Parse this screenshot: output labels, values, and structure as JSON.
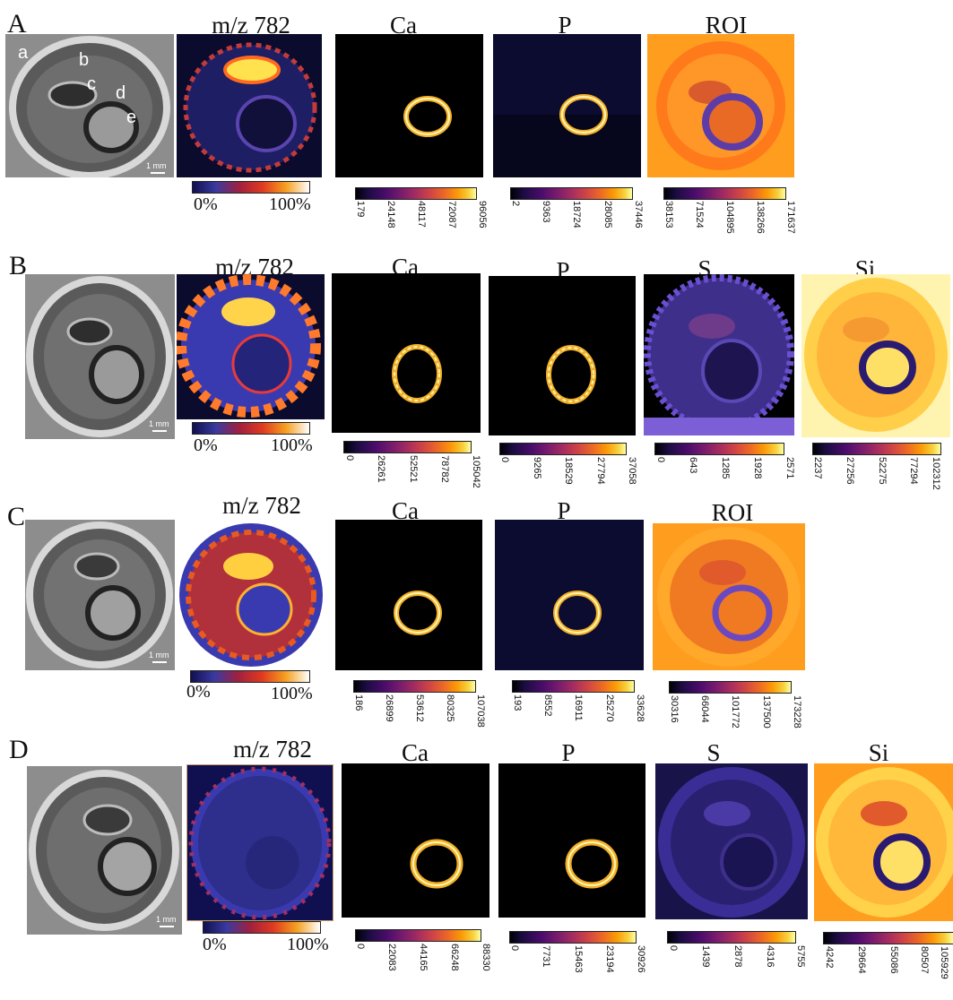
{
  "rows": [
    {
      "letter": "A",
      "titles": {
        "ms": "m/z 782",
        "ca": "Ca",
        "p": "P",
        "extra1": "ROI"
      },
      "sub_labels": [
        "a",
        "b",
        "c",
        "d",
        "e"
      ],
      "scale": "1 mm",
      "ms_bar": [
        "0%",
        "100%"
      ],
      "ca_ticks": [
        "179",
        "24148",
        "48117",
        "72087",
        "96056"
      ],
      "p_ticks": [
        "2",
        "9363",
        "18724",
        "28085",
        "37446"
      ],
      "extra1_ticks": [
        "38153",
        "71524",
        "104895",
        "138266",
        "171637"
      ]
    },
    {
      "letter": "B",
      "titles": {
        "ms": "m/z 782",
        "ca": "Ca",
        "p": "P",
        "extra1": "S",
        "extra2": "Si"
      },
      "scale": "1 mm",
      "ms_bar": [
        "0%",
        "100%"
      ],
      "ca_ticks": [
        "0",
        "26261",
        "52521",
        "78782",
        "105042"
      ],
      "p_ticks": [
        "0",
        "9265",
        "18529",
        "27794",
        "37058"
      ],
      "extra1_ticks": [
        "0",
        "643",
        "1285",
        "1928",
        "2571"
      ],
      "extra2_ticks": [
        "2237",
        "27256",
        "52275",
        "77294",
        "102312"
      ]
    },
    {
      "letter": "C",
      "titles": {
        "ms": "m/z 782",
        "ca": "Ca",
        "p": "P",
        "extra1": "ROI"
      },
      "scale": "1 mm",
      "ms_bar": [
        "0%",
        "100%"
      ],
      "ca_ticks": [
        "186",
        "26899",
        "53612",
        "80325",
        "107038"
      ],
      "p_ticks": [
        "193",
        "8552",
        "16911",
        "25270",
        "33628"
      ],
      "extra1_ticks": [
        "30316",
        "66044",
        "101772",
        "137500",
        "173228"
      ]
    },
    {
      "letter": "D",
      "titles": {
        "ms": "m/z 782",
        "ca": "Ca",
        "p": "P",
        "extra1": "S",
        "extra2": "Si"
      },
      "scale": "1 mm",
      "ms_bar": [
        "0%",
        "100%"
      ],
      "ca_ticks": [
        "0",
        "22083",
        "44165",
        "66248",
        "88330"
      ],
      "p_ticks": [
        "0",
        "7731",
        "15463",
        "23194",
        "30926"
      ],
      "extra1_ticks": [
        "0",
        "1439",
        "2878",
        "4316",
        "5755"
      ],
      "extra2_ticks": [
        "4242",
        "29664",
        "55086",
        "80507",
        "105929"
      ]
    }
  ],
  "colors": {
    "colormap": "inferno",
    "ms_colormap": "blue-red-yellow",
    "background": "#ffffff"
  }
}
